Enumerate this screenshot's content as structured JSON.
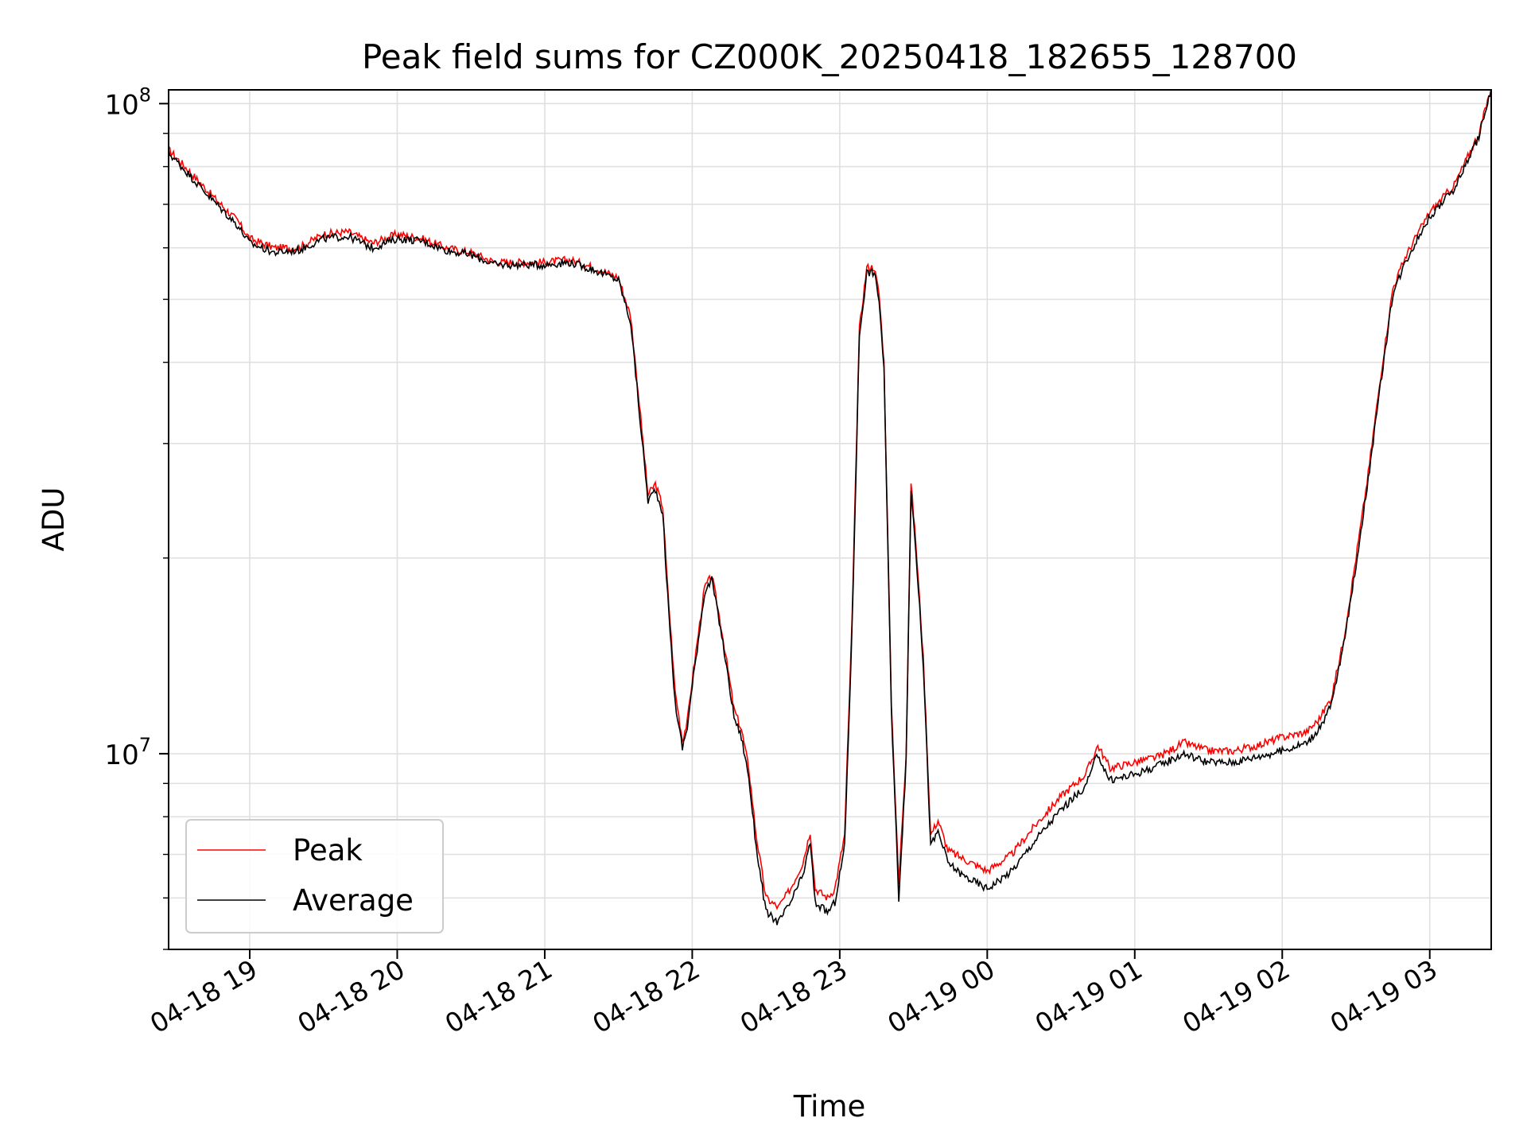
{
  "chart_data": {
    "type": "line",
    "title": "Peak field sums for CZ000K_20250418_182655_128700",
    "xlabel": "Time",
    "ylabel": "ADU",
    "yscale": "log",
    "xlim": [
      "04-18 18:27",
      "04-19 03:25"
    ],
    "ylim": [
      5000000,
      105000000
    ],
    "x_tick_labels": [
      "04-18 19",
      "04-18 20",
      "04-18 21",
      "04-18 22",
      "04-18 23",
      "04-19 00",
      "04-19 01",
      "04-19 02",
      "04-19 03"
    ],
    "y_tick_labels": [
      {
        "base": "10",
        "exp": "7",
        "value": 10000000
      },
      {
        "base": "10",
        "exp": "8",
        "value": 100000000
      }
    ],
    "grid": true,
    "legend_position": "lower-left",
    "colors": {
      "Peak": "#ff0000",
      "Average": "#000000",
      "grid": "#e0e0e0"
    },
    "x": [
      "04-18 18:27",
      "04-18 18:35",
      "04-18 18:45",
      "04-18 18:55",
      "04-18 19:00",
      "04-18 19:10",
      "04-18 19:20",
      "04-18 19:30",
      "04-18 19:40",
      "04-18 19:50",
      "04-18 20:00",
      "04-18 20:10",
      "04-18 20:20",
      "04-18 20:30",
      "04-18 20:40",
      "04-18 20:50",
      "04-18 21:00",
      "04-18 21:10",
      "04-18 21:20",
      "04-18 21:30",
      "04-18 21:35",
      "04-18 21:39",
      "04-18 21:42",
      "04-18 21:45",
      "04-18 21:48",
      "04-18 21:50",
      "04-18 21:53",
      "04-18 21:56",
      "04-18 21:58",
      "04-18 22:00",
      "04-18 22:05",
      "04-18 22:08",
      "04-18 22:12",
      "04-18 22:17",
      "04-18 22:20",
      "04-18 22:23",
      "04-18 22:26",
      "04-18 22:30",
      "04-18 22:35",
      "04-18 22:40",
      "04-18 22:45",
      "04-18 22:48",
      "04-18 22:50",
      "04-18 22:55",
      "04-18 22:58",
      "04-18 23:02",
      "04-18 23:05",
      "04-18 23:08",
      "04-18 23:11",
      "04-18 23:14",
      "04-18 23:16",
      "04-18 23:18",
      "04-18 23:21",
      "04-18 23:24",
      "04-18 23:27",
      "04-18 23:29",
      "04-18 23:31",
      "04-18 23:34",
      "04-18 23:37",
      "04-18 23:40",
      "04-18 23:44",
      "04-18 23:50",
      "04-19 00:00",
      "04-19 00:10",
      "04-19 00:20",
      "04-19 00:30",
      "04-19 00:40",
      "04-19 00:45",
      "04-19 00:48",
      "04-19 00:50",
      "04-19 01:00",
      "04-19 01:10",
      "04-19 01:20",
      "04-19 01:30",
      "04-19 01:40",
      "04-19 01:50",
      "04-19 02:00",
      "04-19 02:10",
      "04-19 02:15",
      "04-19 02:20",
      "04-19 02:25",
      "04-19 02:30",
      "04-19 02:35",
      "04-19 02:40",
      "04-19 02:45",
      "04-19 02:50",
      "04-19 02:55",
      "04-19 03:00",
      "04-19 03:10",
      "04-19 03:20",
      "04-19 03:25"
    ],
    "series": [
      {
        "name": "Peak",
        "values": [
          85000000,
          79000000,
          72000000,
          66000000,
          62000000,
          60000000,
          60000000,
          63000000,
          63500000,
          61000000,
          63000000,
          62000000,
          60000000,
          59000000,
          57000000,
          57000000,
          57000000,
          57500000,
          56000000,
          54000000,
          47000000,
          33000000,
          25000000,
          26000000,
          24000000,
          18000000,
          12500000,
          10500000,
          11200000,
          13000000,
          18000000,
          18800000,
          15500000,
          11700000,
          10900000,
          9500000,
          7500000,
          6000000,
          5800000,
          6200000,
          6800000,
          7600000,
          6200000,
          6000000,
          6200000,
          7500000,
          16000000,
          45000000,
          56000000,
          56000000,
          51000000,
          40000000,
          12000000,
          6300000,
          10000000,
          26000000,
          21000000,
          14000000,
          7500000,
          7900000,
          7100000,
          6900000,
          6600000,
          7000000,
          7800000,
          8600000,
          9300000,
          10300000,
          9800000,
          9500000,
          9700000,
          9900000,
          10400000,
          10100000,
          10100000,
          10300000,
          10600000,
          10800000,
          11300000,
          12200000,
          15000000,
          20000000,
          27000000,
          38000000,
          52000000,
          58000000,
          63000000,
          68000000,
          75000000,
          90000000,
          106000000
        ]
      },
      {
        "name": "Average",
        "values": [
          84000000,
          78000000,
          71000000,
          65000000,
          61000000,
          59000000,
          59500000,
          62000000,
          62500000,
          60000000,
          62000000,
          61500000,
          59500000,
          58500000,
          56500000,
          56500000,
          56500000,
          57000000,
          55500000,
          53500000,
          46000000,
          32000000,
          24500000,
          25500000,
          23500000,
          17500000,
          12000000,
          10200000,
          11000000,
          12700000,
          17700000,
          18500000,
          15200000,
          11400000,
          10600000,
          9200000,
          7200000,
          5700000,
          5500000,
          5900000,
          6500000,
          7300000,
          5900000,
          5700000,
          5900000,
          7200000,
          15500000,
          44000000,
          55000000,
          55000000,
          50000000,
          39000000,
          11700000,
          6000000,
          9700000,
          25500000,
          20500000,
          13700000,
          7200000,
          7600000,
          6800000,
          6500000,
          6200000,
          6600000,
          7400000,
          8200000,
          8900000,
          10000000,
          9400000,
          9100000,
          9300000,
          9600000,
          10000000,
          9700000,
          9700000,
          9900000,
          10100000,
          10400000,
          10900000,
          11900000,
          14700000,
          19500000,
          26500000,
          37000000,
          51000000,
          57000000,
          62000000,
          67000000,
          74000000,
          89000000,
          105000000
        ]
      }
    ]
  }
}
